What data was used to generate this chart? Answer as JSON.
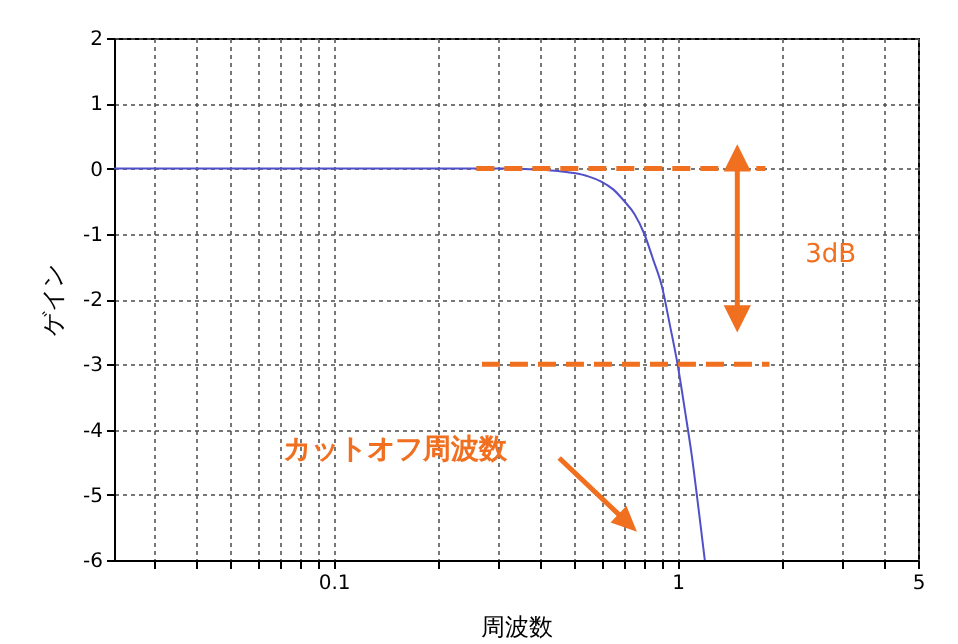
{
  "chart_data": {
    "type": "line",
    "xlabel": "周波数",
    "ylabel": "ゲイン",
    "log": "x",
    "grid": true,
    "xlim": [
      0.023,
      5
    ],
    "ylim": [
      -6,
      2
    ],
    "xticks": [
      {
        "value": 0.03,
        "label": null
      },
      {
        "value": 0.04,
        "label": null
      },
      {
        "value": 0.05,
        "label": null
      },
      {
        "value": 0.06,
        "label": null
      },
      {
        "value": 0.07,
        "label": null
      },
      {
        "value": 0.08,
        "label": null
      },
      {
        "value": 0.09,
        "label": null
      },
      {
        "value": 0.1,
        "label": "0.1"
      },
      {
        "value": 0.2,
        "label": null
      },
      {
        "value": 0.3,
        "label": null
      },
      {
        "value": 0.4,
        "label": null
      },
      {
        "value": 0.5,
        "label": null
      },
      {
        "value": 0.6,
        "label": null
      },
      {
        "value": 0.7,
        "label": null
      },
      {
        "value": 0.8,
        "label": null
      },
      {
        "value": 0.9,
        "label": null
      },
      {
        "value": 1,
        "label": "1"
      },
      {
        "value": 2,
        "label": null
      },
      {
        "value": 3,
        "label": null
      },
      {
        "value": 4,
        "label": null
      },
      {
        "value": 5,
        "label": "5"
      }
    ],
    "yticks": [
      -6,
      -5,
      -4,
      -3,
      -2,
      -1,
      0,
      1,
      2
    ],
    "series": [
      {
        "color": "#5050c8",
        "line_style": "solid",
        "x": [
          0.023,
          0.1,
          0.3,
          0.4,
          0.45,
          0.5,
          0.55,
          0.6,
          0.65,
          0.7,
          0.75,
          0.8,
          0.85,
          0.9,
          0.95,
          1.0,
          1.05,
          1.1,
          1.15,
          1.2
        ],
        "values": [
          0,
          0,
          0,
          -0.02,
          -0.04,
          -0.07,
          -0.12,
          -0.2,
          -0.32,
          -0.5,
          -0.7,
          -1.0,
          -1.4,
          -1.8,
          -2.4,
          -3.0,
          -3.7,
          -4.4,
          -5.2,
          -6.0
        ]
      },
      {
        "color": "#f07020",
        "line_style": "dashed",
        "x": [
          0.26,
          1.8
        ],
        "values": [
          0,
          0
        ]
      },
      {
        "color": "#f07020",
        "line_style": "dashed",
        "x": [
          0.27,
          1.85
        ],
        "values": [
          -3,
          -3
        ]
      }
    ],
    "annotations": [
      "3dB",
      "カットオフ周波数"
    ]
  }
}
